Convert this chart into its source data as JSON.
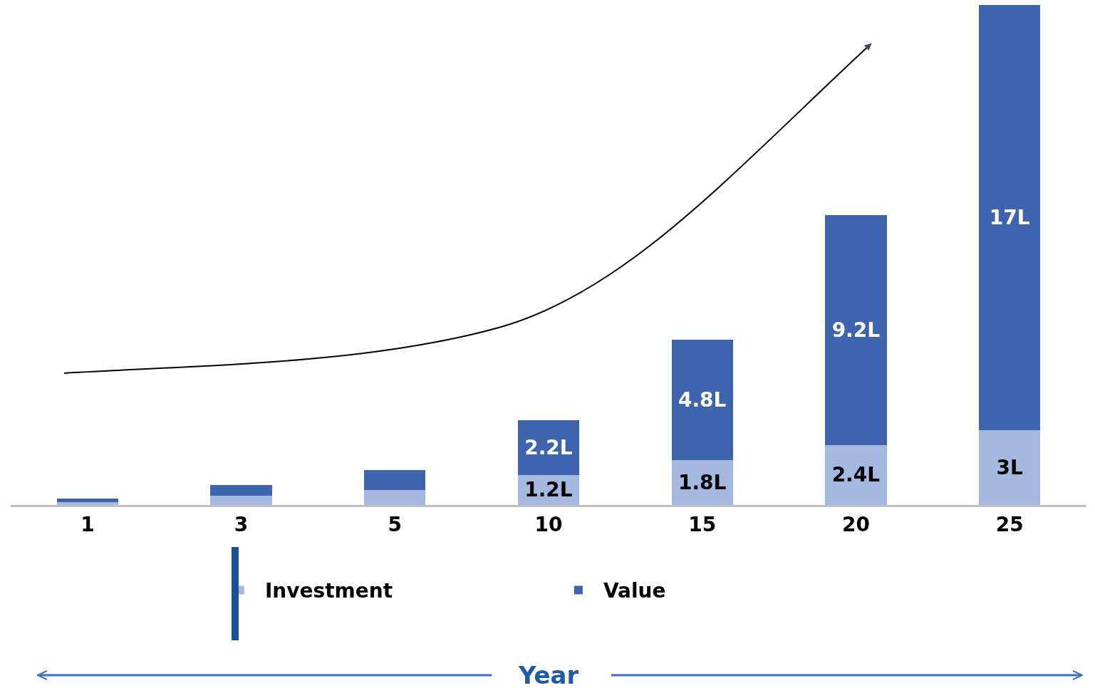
{
  "chart_data": {
    "type": "bar",
    "categories": [
      "1",
      "3",
      "5",
      "10",
      "15",
      "20",
      "25"
    ],
    "annotations": [
      "Year"
    ],
    "stacked": true,
    "legend": "bottom",
    "grid": false,
    "series": [
      {
        "name": "Investment",
        "color": "#a4b8e0",
        "values": [
          0.12,
          0.36,
          0.6,
          1.2,
          1.8,
          2.4,
          3
        ],
        "value_labels": [
          null,
          null,
          null,
          "1.2L",
          "1.8L",
          "2.4L",
          "3L"
        ]
      },
      {
        "name": "Value",
        "color": "#3d64ad",
        "values": [
          0.14,
          0.43,
          0.8,
          2.2,
          4.8,
          9.2,
          17
        ],
        "value_labels": [
          null,
          null,
          null,
          "2.2L",
          "4.8L",
          "9.2L",
          "17L"
        ]
      }
    ]
  }
}
